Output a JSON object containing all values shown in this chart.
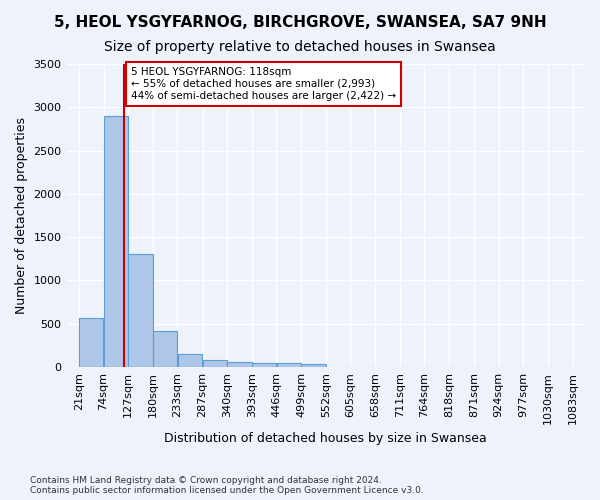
{
  "title_line1": "5, HEOL YSGYFARNOG, BIRCHGROVE, SWANSEA, SA7 9NH",
  "title_line2": "Size of property relative to detached houses in Swansea",
  "xlabel": "Distribution of detached houses by size in Swansea",
  "ylabel": "Number of detached properties",
  "footnote": "Contains HM Land Registry data © Crown copyright and database right 2024.\nContains public sector information licensed under the Open Government Licence v3.0.",
  "bin_labels": [
    "21sqm",
    "74sqm",
    "127sqm",
    "180sqm",
    "233sqm",
    "287sqm",
    "340sqm",
    "393sqm",
    "446sqm",
    "499sqm",
    "552sqm",
    "605sqm",
    "658sqm",
    "711sqm",
    "764sqm",
    "818sqm",
    "871sqm",
    "924sqm",
    "977sqm",
    "1030sqm",
    "1083sqm"
  ],
  "bin_edges": [
    21,
    74,
    127,
    180,
    233,
    287,
    340,
    393,
    446,
    499,
    552,
    605,
    658,
    711,
    764,
    818,
    871,
    924,
    977,
    1030,
    1083
  ],
  "bar_heights": [
    560,
    2900,
    1310,
    410,
    155,
    85,
    60,
    50,
    40,
    30,
    0,
    0,
    0,
    0,
    0,
    0,
    0,
    0,
    0,
    0
  ],
  "bar_color": "#aec6e8",
  "bar_edge_color": "#5a9fd4",
  "property_line_x": 118,
  "property_line_color": "#cc0000",
  "annotation_text": "5 HEOL YSGYFARNOG: 118sqm\n← 55% of detached houses are smaller (2,993)\n44% of semi-detached houses are larger (2,422) →",
  "annotation_box_color": "#cc0000",
  "ylim": [
    0,
    3500
  ],
  "yticks": [
    0,
    500,
    1000,
    1500,
    2000,
    2500,
    3000,
    3500
  ],
  "background_color": "#eef2fa",
  "grid_color": "#ffffff",
  "title_fontsize": 11,
  "subtitle_fontsize": 10,
  "axis_label_fontsize": 9,
  "tick_fontsize": 8
}
